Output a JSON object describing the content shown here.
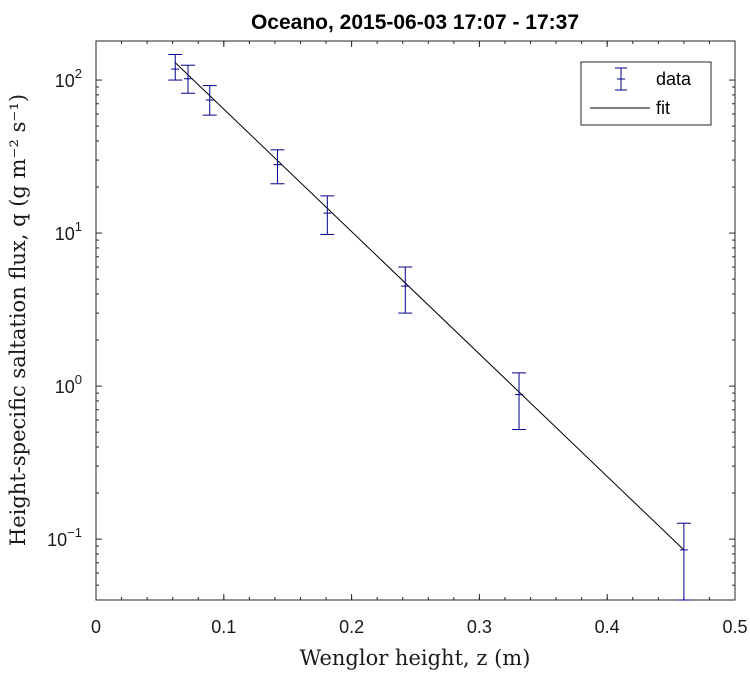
{
  "chart_data": {
    "type": "scatter",
    "title": "Oceano, 2015-06-03 17:07 - 17:37",
    "xlabel": "Wenglor height, z (m)",
    "ylabel": "Height-specific saltation flux, q (g m⁻² s⁻¹)",
    "xlim": [
      0,
      0.5
    ],
    "ylim": [
      0.04,
      180
    ],
    "yscale": "log",
    "grid": false,
    "legend_position": "top-right",
    "x_ticks": [
      "0",
      "0.1",
      "0.2",
      "0.3",
      "0.4",
      "0.5"
    ],
    "y_ticks": [
      "10^-1",
      "10^0",
      "10^1",
      "10^2"
    ],
    "series": [
      {
        "name": "data",
        "kind": "errorbar",
        "color": "#00008b",
        "x": [
          0.062,
          0.072,
          0.089,
          0.142,
          0.181,
          0.242,
          0.331,
          0.46
        ],
        "y": [
          118,
          102,
          74,
          28,
          13.5,
          4.5,
          0.88,
          0.085
        ],
        "yerr_low": [
          100,
          82,
          59,
          21,
          9.8,
          3.0,
          0.52,
          0.04
        ],
        "yerr_high": [
          147,
          125,
          92,
          35,
          17.5,
          6.0,
          1.22,
          0.127
        ]
      },
      {
        "name": "fit",
        "kind": "line",
        "color": "#000000",
        "x": [
          0.062,
          0.46
        ],
        "y": [
          130,
          0.085
        ]
      }
    ]
  }
}
